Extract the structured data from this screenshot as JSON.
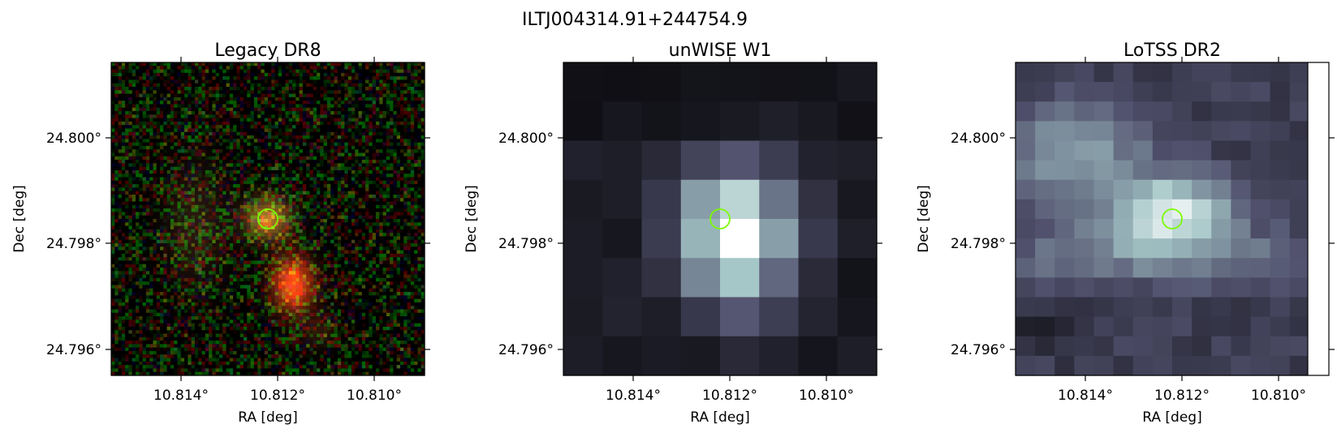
{
  "figure": {
    "title": "ILTJ004314.91+244754.9"
  },
  "panels": [
    {
      "title": "Legacy DR8",
      "xlabel": "RA [deg]",
      "ylabel": "Dec [deg]",
      "xticks": [
        "10.814°",
        "10.812°",
        "10.810°"
      ],
      "yticks": [
        "24.800°",
        "24.798°",
        "24.796°"
      ],
      "image": "color-noise",
      "marker_color": "#7cfc00"
    },
    {
      "title": "unWISE W1",
      "xlabel": "RA [deg]",
      "ylabel": "Dec [deg]",
      "xticks": [
        "10.814°",
        "10.812°",
        "10.810°"
      ],
      "yticks": [
        "24.800°",
        "24.798°",
        "24.796°"
      ],
      "image": "bone-coarse",
      "marker_color": "#7cfc00"
    },
    {
      "title": "LoTSS DR2",
      "xlabel": "RA [deg]",
      "ylabel": "Dec [deg]",
      "xticks": [
        "10.814°",
        "10.812°",
        "10.810°"
      ],
      "yticks": [
        "24.800°",
        "24.798°",
        "24.796°"
      ],
      "image": "bone-fine",
      "marker_color": "#7cfc00"
    }
  ]
}
